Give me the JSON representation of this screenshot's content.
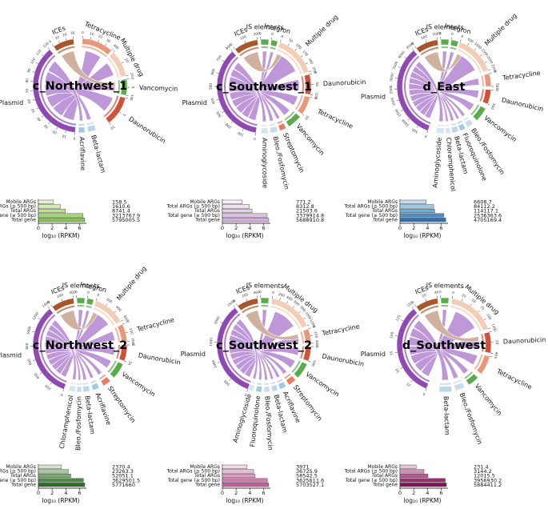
{
  "panels": [
    {
      "name": "c_Northwest_1",
      "sectors": [
        {
          "label": "Plasmid",
          "color": "#8f49b3",
          "ticks": [
            "0",
            "10",
            "20",
            "30",
            "40",
            "50",
            "60",
            "70",
            "80",
            "90",
            "100",
            "110",
            "120"
          ]
        },
        {
          "label": "ICEs",
          "color": "#a9562a",
          "ticks": [
            "0",
            "10",
            "20",
            "30"
          ]
        },
        {
          "label": "Tetracycline",
          "color": "#e8977a",
          "ticks": [
            "0",
            "10",
            "20",
            "30",
            "40"
          ]
        },
        {
          "label": "Multiple drug",
          "color": "#f3cdb6",
          "ticks": [
            "0",
            "10",
            "20"
          ]
        },
        {
          "label": "Vancomycin",
          "color": "#5aab4c",
          "ticks": [
            "0",
            "5",
            "10"
          ]
        },
        {
          "label": "Daunorubicin",
          "color": "#d1503a",
          "ticks": [
            "0",
            "5",
            "10"
          ]
        },
        {
          "label": "Beta-lactam",
          "color": "#bcd7ea",
          "ticks": []
        },
        {
          "label": "Acriflavine",
          "color": "#9ecae1",
          "ticks": []
        }
      ],
      "bars": {
        "labels": [
          "Mobile ARGs",
          "Total ARGs (≥ 500 bp)",
          "Total ARGs",
          "Total gene (≥ 500 bp)",
          "Total gene"
        ],
        "values": [
          "158.5",
          "1610.6",
          "8741.4",
          "3213767.9",
          "5795005.5"
        ],
        "log_values": [
          2.2,
          3.21,
          3.94,
          6.51,
          6.76
        ],
        "colors": [
          "#e6f2d4",
          "#d4ebb6",
          "#bfe195",
          "#a4d473",
          "#86c251"
        ],
        "xlabel": "log₁₀ (RPKM)",
        "xticks": [
          "0",
          "2",
          "4",
          "6"
        ]
      }
    },
    {
      "name": "c_Southwest_1",
      "sectors": [
        {
          "label": "Plasmid",
          "color": "#8f49b3",
          "ticks": [
            "0",
            "100",
            "200",
            "300",
            "400",
            "500",
            "600",
            "700",
            "800"
          ]
        },
        {
          "label": "ICEs",
          "color": "#a9562a",
          "ticks": [
            "0",
            "100",
            "200"
          ]
        },
        {
          "label": "IS elements",
          "color": "#5aab4c",
          "ticks": [
            "0"
          ]
        },
        {
          "label": "Integron",
          "color": "#5aab4c",
          "ticks": [
            "0"
          ]
        },
        {
          "label": "Multiple drug",
          "color": "#f3cdb6",
          "ticks": [
            "0",
            "50",
            "100",
            "150",
            "200",
            "250"
          ]
        },
        {
          "label": "Daunorubicin",
          "color": "#d1503a",
          "ticks": [
            "0",
            "50",
            "100"
          ]
        },
        {
          "label": "Tetracycline",
          "color": "#e8977a",
          "ticks": [
            "0",
            "50"
          ]
        },
        {
          "label": "Vancomycin",
          "color": "#5aab4c",
          "ticks": []
        },
        {
          "label": "Streptomycin",
          "color": "#e77c63",
          "ticks": []
        },
        {
          "label": "Bleo./Fosfomycin",
          "color": "#c9dcea",
          "ticks": []
        },
        {
          "label": "Aminoglycoside",
          "color": "#d7e5ef",
          "ticks": []
        }
      ],
      "bars": {
        "labels": [
          "Mobile ARGs",
          "Total ARGs (≥ 500 bp)",
          "Total ARGs",
          "Total gene (≥ 500 bp)",
          "Total gene"
        ],
        "values": [
          "771.2",
          "8312.8",
          "21503.6",
          "3379914.8",
          "5688910.8"
        ],
        "log_values": [
          2.89,
          3.92,
          4.33,
          6.53,
          6.76
        ],
        "colors": [
          "#f7f0f8",
          "#efe2f1",
          "#e6d2ea",
          "#dbc1e2",
          "#d1b0da"
        ],
        "xlabel": "log₁₀ (RPKM)",
        "xticks": [
          "0",
          "2",
          "4",
          "6"
        ]
      }
    },
    {
      "name": "d_East",
      "sectors": [
        {
          "label": "Plasmid",
          "color": "#8f49b3",
          "ticks": [
            "0",
            "500",
            "1000",
            "1500",
            "2000",
            "2500",
            "3000",
            "3500",
            "4000",
            "4500"
          ]
        },
        {
          "label": "ICEs",
          "color": "#a9562a",
          "ticks": [
            "0",
            "500",
            "1000"
          ]
        },
        {
          "label": "IS elements",
          "color": "#5aab4c",
          "ticks": [
            "0"
          ]
        },
        {
          "label": "Integron",
          "color": "#5aab4c",
          "ticks": [
            "0"
          ]
        },
        {
          "label": "Multiple drug",
          "color": "#f3cdb6",
          "ticks": [
            "0",
            "500",
            "1000",
            "1500",
            "2000",
            "2500"
          ]
        },
        {
          "label": "Tetracycline",
          "color": "#e8977a",
          "ticks": [
            "0",
            "500"
          ]
        },
        {
          "label": "Daunorubicin",
          "color": "#d1503a",
          "ticks": [
            "0",
            "500"
          ]
        },
        {
          "label": "Vancomycin",
          "color": "#5aab4c",
          "ticks": []
        },
        {
          "label": "Bleo./Fosfomycin",
          "color": "#c9dcea",
          "ticks": []
        },
        {
          "label": "Fluoroquinolone",
          "color": "#9ecae1",
          "ticks": []
        },
        {
          "label": "Beta-lactam",
          "color": "#bcd7ea",
          "ticks": []
        },
        {
          "label": "Chloramphenicol",
          "color": "#d7e5ef",
          "ticks": []
        },
        {
          "label": "Aminoglycoside",
          "color": "#d7e5ef",
          "ticks": []
        }
      ],
      "bars": {
        "labels": [
          "Mobile ARGs",
          "Total ARGs (≥ 500 bp)",
          "Total ARGs",
          "Total gene (≥ 500 bp)",
          "Total gene"
        ],
        "values": [
          "6608.7",
          "84112.2",
          "114117.1",
          "2536363.6",
          "4705169.4"
        ],
        "log_values": [
          3.82,
          4.92,
          5.06,
          6.4,
          6.67
        ],
        "colors": [
          "#c6dbef",
          "#9ecae1",
          "#6baed6",
          "#4a8cc6",
          "#2f6fb0"
        ],
        "xlabel": "log₁₀ (RPKM)",
        "xticks": [
          "0",
          "2",
          "4",
          "6"
        ]
      }
    },
    {
      "name": "c_Northwest_2",
      "sectors": [
        {
          "label": "Plasmid",
          "color": "#8f49b3",
          "ticks": [
            "0",
            "200",
            "400",
            "600",
            "800",
            "1000",
            "1200",
            "1400"
          ]
        },
        {
          "label": "ICEs",
          "color": "#a9562a",
          "ticks": [
            "0",
            "200",
            "400"
          ]
        },
        {
          "label": "IS elements",
          "color": "#5aab4c",
          "ticks": [
            "0"
          ]
        },
        {
          "label": "Integron",
          "color": "#5aab4c",
          "ticks": [
            "0"
          ]
        },
        {
          "label": "Multiple drug",
          "color": "#f3cdb6",
          "ticks": [
            "0",
            "200",
            "400",
            "600"
          ]
        },
        {
          "label": "Tetracycline",
          "color": "#e8977a",
          "ticks": [
            "0",
            "100",
            "200"
          ]
        },
        {
          "label": "Daunorubicin",
          "color": "#d1503a",
          "ticks": [
            "0",
            "50"
          ]
        },
        {
          "label": "Vancomycin",
          "color": "#5aab4c",
          "ticks": []
        },
        {
          "label": "Streptomycin",
          "color": "#e77c63",
          "ticks": []
        },
        {
          "label": "Acriflavine",
          "color": "#9ecae1",
          "ticks": []
        },
        {
          "label": "Beta-lactam",
          "color": "#bcd7ea",
          "ticks": []
        },
        {
          "label": "Bleo./Fosfomycin",
          "color": "#c9dcea",
          "ticks": []
        },
        {
          "label": "Chloramphenicol",
          "color": "#d7e5ef",
          "ticks": []
        }
      ],
      "bars": {
        "labels": [
          "Mobile ARGs",
          "Total ARGs (≥ 500 bp)",
          "Total ARGs",
          "Total gene (≥ 500 bp)",
          "Total gene"
        ],
        "values": [
          "2370.4",
          "23263.3",
          "52051.1",
          "3629501.5",
          "5771660"
        ],
        "log_values": [
          3.37,
          4.37,
          4.72,
          6.56,
          6.76
        ],
        "colors": [
          "#d3e4cd",
          "#a9c7a0",
          "#7fa873",
          "#4f8a47",
          "#2d6b28"
        ],
        "xlabel": "log₁₀ (RPKM)",
        "xticks": [
          "0",
          "2",
          "4",
          "6"
        ]
      }
    },
    {
      "name": "c_Southwest_2",
      "sectors": [
        {
          "label": "Plasmid",
          "color": "#8f49b3",
          "ticks": [
            "0",
            "500",
            "1000",
            "1500",
            "2000",
            "2500"
          ]
        },
        {
          "label": "ICEs",
          "color": "#a9562a",
          "ticks": [
            "0",
            "200",
            "400"
          ]
        },
        {
          "label": "IS elements",
          "color": "#5aab4c",
          "ticks": [
            "0"
          ]
        },
        {
          "label": "Multiple drug",
          "color": "#f3cdb6",
          "ticks": [
            "0",
            "200",
            "400",
            "600",
            "800",
            "1000",
            "1200"
          ]
        },
        {
          "label": "Tetracycline",
          "color": "#e8977a",
          "ticks": [
            "0",
            "100",
            "200"
          ]
        },
        {
          "label": "Daunorubicin",
          "color": "#d1503a",
          "ticks": [
            "0",
            "100"
          ]
        },
        {
          "label": "Vancomycin",
          "color": "#5aab4c",
          "ticks": []
        },
        {
          "label": "Streptomycin",
          "color": "#e77c63",
          "ticks": []
        },
        {
          "label": "Acriflavine",
          "color": "#9ecae1",
          "ticks": []
        },
        {
          "label": "Beta-lactam",
          "color": "#bcd7ea",
          "ticks": []
        },
        {
          "label": "Bleo./Fosfomycin",
          "color": "#c9dcea",
          "ticks": []
        },
        {
          "label": "Fluoroquinolone",
          "color": "#9ecae1",
          "ticks": []
        },
        {
          "label": "Aminoglycoside",
          "color": "#d7e5ef",
          "ticks": []
        }
      ],
      "bars": {
        "labels": [
          "Mobile ARGs",
          "Total ARGs (≥ 500 bp)",
          "Total ARGs",
          "Total gene (≥ 500 bp)",
          "Total gene"
        ],
        "values": [
          "3971",
          "36725.9",
          "58542.5",
          "3625611.6",
          "5703527.1"
        ],
        "log_values": [
          3.6,
          4.56,
          4.77,
          6.56,
          6.76
        ],
        "colors": [
          "#f3dbe9",
          "#e8bcd6",
          "#dd9cc2",
          "#d07cae",
          "#c45d9a"
        ],
        "xlabel": "log₁₀ (RPKM)",
        "xticks": [
          "0",
          "2",
          "4",
          "6"
        ]
      }
    },
    {
      "name": "d_Southwest",
      "sectors": [
        {
          "label": "Plasmid",
          "color": "#8f49b3",
          "ticks": [
            "0",
            "25",
            "50",
            "75",
            "100",
            "125",
            "150"
          ]
        },
        {
          "label": "ICEs",
          "color": "#a9562a",
          "ticks": [
            "0",
            "20",
            "40"
          ]
        },
        {
          "label": "IS elements",
          "color": "#5aab4c",
          "ticks": [
            "0"
          ]
        },
        {
          "label": "Multiple drug",
          "color": "#f3cdb6",
          "ticks": [
            "0",
            "25",
            "50",
            "75",
            "100",
            "125"
          ]
        },
        {
          "label": "Daunorubicin",
          "color": "#d1503a",
          "ticks": [
            "0",
            "20",
            "40"
          ]
        },
        {
          "label": "Tetracycline",
          "color": "#e8977a",
          "ticks": [
            "0"
          ]
        },
        {
          "label": "Vancomycin",
          "color": "#5aab4c",
          "ticks": []
        },
        {
          "label": "Bleo./Fosfomycin",
          "color": "#c9dcea",
          "ticks": []
        },
        {
          "label": "Beta-lactam",
          "color": "#bcd7ea",
          "ticks": []
        }
      ],
      "bars": {
        "labels": [
          "Mobile ARGs",
          "Total ARGs (≥ 500 bp)",
          "Total ARGs",
          "Total gene (≥ 500 bp)",
          "Total gene"
        ],
        "values": [
          "231.4",
          "3144.2",
          "12015.5",
          "3956930.2",
          "5884411.2"
        ],
        "log_values": [
          2.36,
          3.5,
          4.08,
          6.6,
          6.77
        ],
        "colors": [
          "#e7c5da",
          "#cf8fb6",
          "#b25a92",
          "#98306f",
          "#7d1355"
        ],
        "xlabel": "log₁₀ (RPKM)",
        "xticks": [
          "0",
          "2",
          "4",
          "6"
        ]
      }
    }
  ],
  "chart_data": [
    {
      "type": "bar",
      "title": "c_Northwest_1",
      "xlabel": "log₁₀ (RPKM)",
      "categories": [
        "Mobile ARGs",
        "Total ARGs (≥ 500 bp)",
        "Total ARGs",
        "Total gene (≥ 500 bp)",
        "Total gene"
      ],
      "values": [
        158.5,
        1610.6,
        8741.4,
        3213767.9,
        5795005.5
      ],
      "xlim": [
        0,
        7
      ]
    },
    {
      "type": "bar",
      "title": "c_Southwest_1",
      "xlabel": "log₁₀ (RPKM)",
      "categories": [
        "Mobile ARGs",
        "Total ARGs (≥ 500 bp)",
        "Total ARGs",
        "Total gene (≥ 500 bp)",
        "Total gene"
      ],
      "values": [
        771.2,
        8312.8,
        21503.6,
        3379914.8,
        5688910.8
      ],
      "xlim": [
        0,
        7
      ]
    },
    {
      "type": "bar",
      "title": "d_East",
      "xlabel": "log₁₀ (RPKM)",
      "categories": [
        "Mobile ARGs",
        "Total ARGs (≥ 500 bp)",
        "Total ARGs",
        "Total gene (≥ 500 bp)",
        "Total gene"
      ],
      "values": [
        6608.7,
        84112.2,
        114117.1,
        2536363.6,
        4705169.4
      ],
      "xlim": [
        0,
        7
      ]
    },
    {
      "type": "bar",
      "title": "c_Northwest_2",
      "xlabel": "log₁₀ (RPKM)",
      "categories": [
        "Mobile ARGs",
        "Total ARGs (≥ 500 bp)",
        "Total ARGs",
        "Total gene (≥ 500 bp)",
        "Total gene"
      ],
      "values": [
        2370.4,
        23263.3,
        52051.1,
        3629501.5,
        5771660
      ],
      "xlim": [
        0,
        7
      ]
    },
    {
      "type": "bar",
      "title": "c_Southwest_2",
      "xlabel": "log₁₀ (RPKM)",
      "categories": [
        "Mobile ARGs",
        "Total ARGs (≥ 500 bp)",
        "Total ARGs",
        "Total gene (≥ 500 bp)",
        "Total gene"
      ],
      "values": [
        3971,
        36725.9,
        58542.5,
        3625611.6,
        5703527.1
      ],
      "xlim": [
        0,
        7
      ]
    },
    {
      "type": "bar",
      "title": "d_Southwest",
      "xlabel": "log₁₀ (RPKM)",
      "categories": [
        "Mobile ARGs",
        "Total ARGs (≥ 500 bp)",
        "Total ARGs",
        "Total gene (≥ 500 bp)",
        "Total gene"
      ],
      "values": [
        231.4,
        3144.2,
        12015.5,
        3956930.2,
        5884411.2
      ],
      "xlim": [
        0,
        7
      ]
    }
  ]
}
